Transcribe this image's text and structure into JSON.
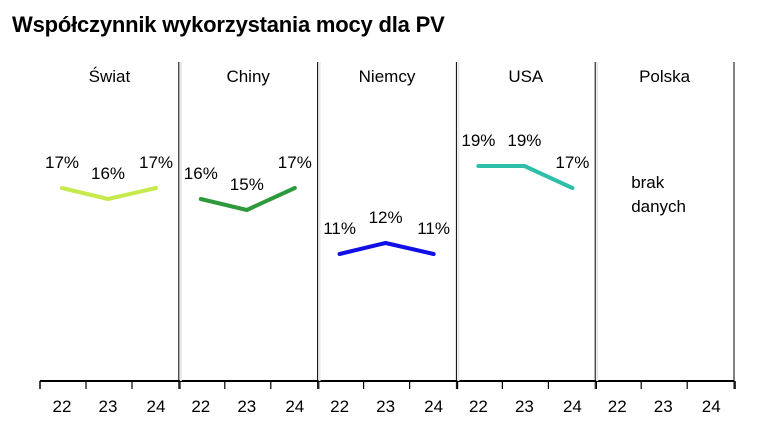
{
  "title": "Współczynnik wykorzystania mocy dla PV",
  "chart_data": {
    "type": "line",
    "title": "Współczynnik wykorzystania mocy dla PV",
    "ylim": [
      0,
      30
    ],
    "grid": false,
    "value_format": "percent",
    "panels": [
      {
        "name": "Świat",
        "x": [
          "22",
          "23",
          "24"
        ],
        "values": [
          17,
          16,
          17
        ],
        "labels": [
          "17%",
          "16%",
          "17%"
        ],
        "color": "#c6ea4e"
      },
      {
        "name": "Chiny",
        "x": [
          "22",
          "23",
          "24"
        ],
        "values": [
          16,
          15,
          17
        ],
        "labels": [
          "16%",
          "15%",
          "17%"
        ],
        "color": "#2e9a3c"
      },
      {
        "name": "Niemcy",
        "x": [
          "22",
          "23",
          "24"
        ],
        "values": [
          11,
          12,
          11
        ],
        "labels": [
          "11%",
          "12%",
          "11%"
        ],
        "color": "#1010e6"
      },
      {
        "name": "USA",
        "x": [
          "22",
          "23",
          "24"
        ],
        "values": [
          19,
          19,
          17
        ],
        "labels": [
          "19%",
          "19%",
          "17%"
        ],
        "color": "#2dbfa8"
      },
      {
        "name": "Polska",
        "x": [
          "22",
          "23",
          "24"
        ],
        "values": [
          null,
          null,
          null
        ],
        "labels": [],
        "color": "#000000",
        "note_lines": [
          "brak",
          "danych"
        ]
      }
    ]
  }
}
